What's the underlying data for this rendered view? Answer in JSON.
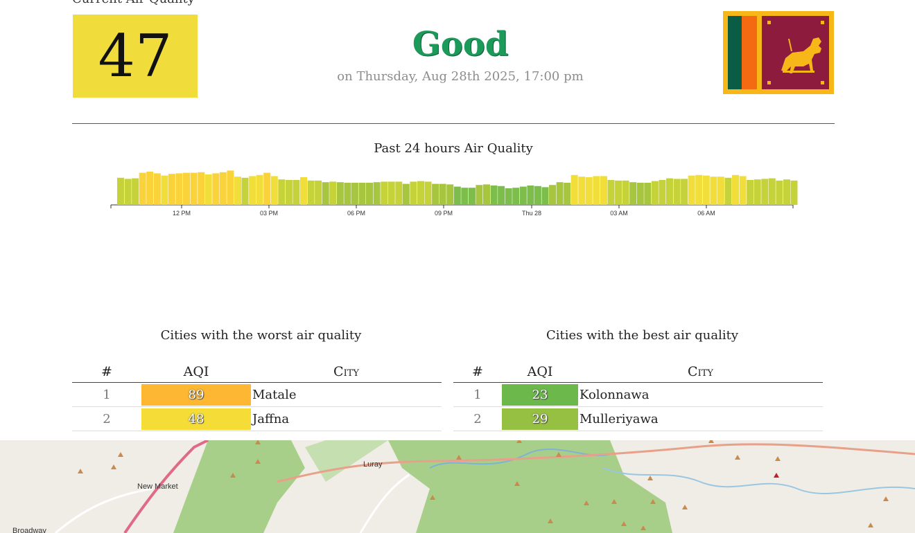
{
  "current": {
    "label": "Current Air Quality",
    "aqi": "47",
    "status": "Good",
    "datetime": "on Thursday, Aug 28th 2025, 17:00 pm",
    "aqi_color": "#f0dc3a",
    "status_color": "#1b9a5a"
  },
  "flag": {
    "country": "Sri Lanka",
    "icon": "sri-lanka-flag-icon"
  },
  "chart_data": {
    "type": "bar",
    "title": "Past 24 hours Air Quality",
    "x_tick_labels": [
      "12 PM",
      "03 PM",
      "06 PM",
      "09 PM",
      "Thu 28",
      "03 AM",
      "06 AM"
    ],
    "values": [
      49,
      47,
      48,
      58,
      60,
      57,
      53,
      56,
      57,
      58,
      58,
      59,
      55,
      57,
      59,
      62,
      51,
      49,
      52,
      54,
      58,
      52,
      46,
      45,
      45,
      50,
      44,
      44,
      41,
      42,
      41,
      40,
      40,
      40,
      40,
      41,
      42,
      42,
      42,
      38,
      42,
      43,
      42,
      38,
      38,
      37,
      33,
      31,
      31,
      36,
      37,
      35,
      34,
      30,
      31,
      33,
      35,
      34,
      32,
      36,
      41,
      40,
      54,
      51,
      50,
      52,
      52,
      45,
      44,
      44,
      41,
      40,
      40,
      43,
      45,
      48,
      47,
      47,
      53,
      54,
      53,
      51,
      51,
      49,
      54,
      52,
      45,
      46,
      47,
      48,
      44,
      46,
      44
    ],
    "ylim": [
      0,
      100
    ],
    "grid": false,
    "legend": "none"
  },
  "worst": {
    "title": "Cities with the worst air quality",
    "headers": {
      "num": "#",
      "aqi": "AQI",
      "city": "City"
    },
    "rows": [
      {
        "num": "1",
        "aqi": "89",
        "city": "Matale",
        "color": "#fdb733"
      },
      {
        "num": "2",
        "aqi": "48",
        "city": "Jaffna",
        "color": "#f5dc36"
      }
    ]
  },
  "best": {
    "title": "Cities with the best air quality",
    "headers": {
      "num": "#",
      "aqi": "AQI",
      "city": "City"
    },
    "rows": [
      {
        "num": "1",
        "aqi": "23",
        "city": "Kolonnawa",
        "color": "#6cb84a"
      },
      {
        "num": "2",
        "aqi": "29",
        "city": "Mulleriyawa",
        "color": "#96c042"
      }
    ]
  },
  "map": {
    "labels": [
      "New Market",
      "Luray",
      "Broadway"
    ]
  }
}
